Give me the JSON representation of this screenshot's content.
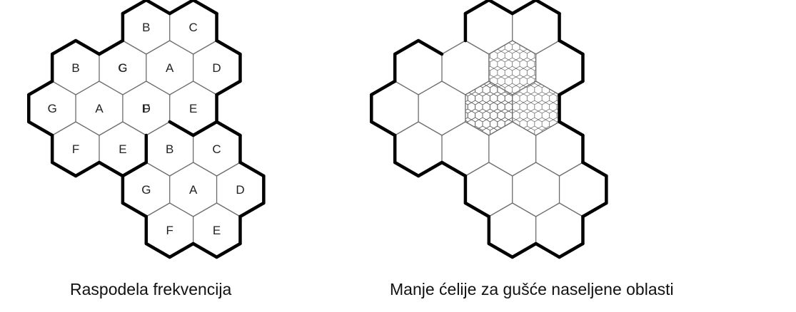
{
  "left_diagram": {
    "caption": "Raspodela frekvencija",
    "clusters": [
      {
        "cells": [
          "A",
          "B",
          "C",
          "D",
          "E",
          "F",
          "G"
        ]
      },
      {
        "cells": [
          "A",
          "B",
          "C",
          "D",
          "E",
          "F",
          "G"
        ]
      },
      {
        "cells": [
          "A",
          "B",
          "C",
          "D",
          "E",
          "F",
          "G"
        ]
      }
    ]
  },
  "right_diagram": {
    "caption": "Manje ćelije za gušće naseljene oblasti",
    "subdivided_cells": 3
  }
}
